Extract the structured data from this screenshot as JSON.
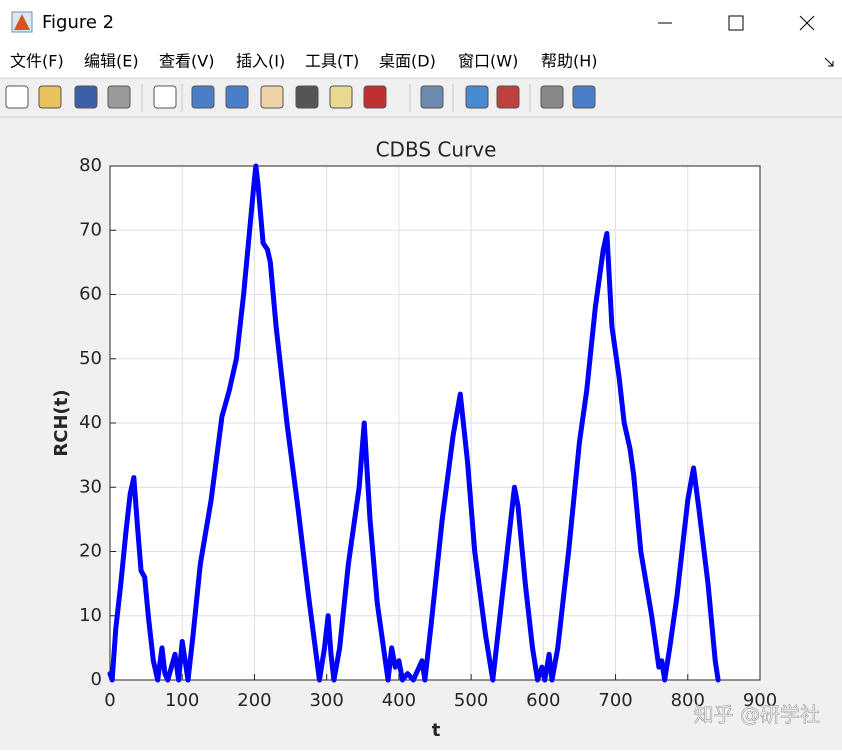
{
  "window": {
    "title": "Figure 2",
    "menu": [
      "文件(F)",
      "编辑(E)",
      "查看(V)",
      "插入(I)",
      "工具(T)",
      "桌面(D)",
      "窗口(W)",
      "帮助(H)"
    ]
  },
  "chart_data": {
    "type": "line",
    "title": "CDBS Curve",
    "x_label": "t",
    "y_label": "RCH(t)",
    "x": [
      0,
      3,
      8,
      15,
      22,
      28,
      33,
      38,
      43,
      48,
      53,
      60,
      66,
      72,
      76,
      80,
      85,
      90,
      95,
      100,
      104,
      108,
      115,
      125,
      140,
      155,
      165,
      175,
      185,
      195,
      200,
      202,
      205,
      212,
      218,
      222,
      230,
      245,
      260,
      275,
      290,
      297,
      302,
      306,
      310,
      318,
      330,
      345,
      352,
      360,
      370,
      385,
      390,
      395,
      400,
      405,
      412,
      420,
      428,
      432,
      436,
      445,
      460,
      475,
      485,
      495,
      505,
      520,
      530,
      540,
      550,
      560,
      565,
      575,
      585,
      592,
      598,
      602,
      608,
      612,
      620,
      635,
      650,
      660,
      672,
      683,
      688,
      695,
      705,
      712,
      720,
      725,
      735,
      750,
      760,
      764,
      768,
      775,
      785,
      800,
      808,
      815,
      828,
      838,
      842
    ],
    "values": [
      1,
      0,
      8,
      15,
      23,
      29,
      31.5,
      24,
      17,
      16,
      10,
      3,
      0,
      5,
      1,
      0,
      2,
      4,
      0,
      6,
      3,
      0,
      7,
      18,
      28,
      41,
      45,
      50,
      60,
      72,
      78,
      80,
      77,
      68,
      67,
      65,
      55,
      40,
      27,
      13,
      0,
      5,
      10,
      4,
      0,
      5,
      18,
      30,
      40,
      25,
      12,
      0,
      5,
      2,
      3,
      0,
      1,
      0,
      2,
      3,
      0,
      9,
      25,
      38,
      44.5,
      34,
      20,
      7,
      0,
      10,
      20,
      30,
      27,
      15,
      5,
      0,
      2,
      0,
      4,
      0,
      5,
      20,
      37,
      45,
      58,
      67,
      69.5,
      55,
      47,
      40,
      36,
      32,
      20,
      10,
      2,
      3,
      0,
      5,
      13,
      28,
      33,
      27,
      15,
      3,
      0
    ],
    "color": "#0000ff",
    "xlim": [
      0,
      900
    ],
    "ylim": [
      0,
      80
    ],
    "xticks": [
      0,
      100,
      200,
      300,
      400,
      500,
      600,
      700,
      800,
      900
    ],
    "yticks": [
      0,
      10,
      20,
      30,
      40,
      50,
      60,
      70,
      80
    ],
    "grid": true
  },
  "watermark": "知乎 @研学社"
}
